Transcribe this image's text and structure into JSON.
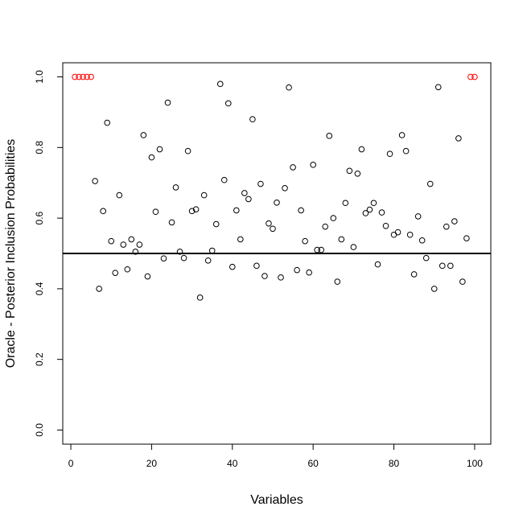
{
  "chart_data": {
    "type": "scatter",
    "title": "",
    "xlabel": "Variables",
    "ylabel": "Oracle - Posterior Inclusion Probabilities",
    "xlim": [
      -2,
      104
    ],
    "ylim": [
      -0.04,
      1.04
    ],
    "x_ticks": [
      0,
      20,
      40,
      60,
      80,
      100
    ],
    "y_ticks": [
      0.0,
      0.2,
      0.4,
      0.6,
      0.8,
      1.0
    ],
    "x_tick_labels": [
      "0",
      "20",
      "40",
      "60",
      "80",
      "100"
    ],
    "y_tick_labels": [
      "0.0",
      "0.2",
      "0.4",
      "0.6",
      "0.8",
      "1.0"
    ],
    "reference_line": {
      "y": 0.5,
      "color": "#000000"
    },
    "grid": false,
    "marker": "open-circle",
    "colors": {
      "highlighted": "#ff0000",
      "other": "#000000"
    },
    "highlighted_indices": [
      1,
      2,
      3,
      4,
      5,
      99,
      100
    ],
    "x": [
      1,
      2,
      3,
      4,
      5,
      6,
      7,
      8,
      9,
      10,
      11,
      12,
      13,
      14,
      15,
      16,
      17,
      18,
      19,
      20,
      21,
      22,
      23,
      24,
      25,
      26,
      27,
      28,
      29,
      30,
      31,
      32,
      33,
      34,
      35,
      36,
      37,
      38,
      39,
      40,
      41,
      42,
      43,
      44,
      45,
      46,
      47,
      48,
      49,
      50,
      51,
      52,
      53,
      54,
      55,
      56,
      57,
      58,
      59,
      60,
      61,
      62,
      63,
      64,
      65,
      66,
      67,
      68,
      69,
      70,
      71,
      72,
      73,
      74,
      75,
      76,
      77,
      78,
      79,
      80,
      81,
      82,
      83,
      84,
      85,
      86,
      87,
      88,
      89,
      90,
      91,
      92,
      93,
      94,
      95,
      96,
      97,
      98,
      99,
      100
    ],
    "y": [
      1.0,
      1.0,
      1.0,
      1.0,
      1.0,
      0.705,
      0.4,
      0.62,
      0.87,
      0.535,
      0.445,
      0.665,
      0.525,
      0.455,
      0.54,
      0.505,
      0.525,
      0.835,
      0.435,
      0.772,
      0.618,
      0.795,
      0.486,
      0.927,
      0.588,
      0.687,
      0.505,
      0.487,
      0.79,
      0.62,
      0.625,
      0.375,
      0.665,
      0.48,
      0.508,
      0.583,
      0.98,
      0.708,
      0.925,
      0.462,
      0.622,
      0.54,
      0.671,
      0.654,
      0.88,
      0.465,
      0.697,
      0.436,
      0.585,
      0.57,
      0.644,
      0.432,
      0.685,
      0.97,
      0.744,
      0.453,
      0.622,
      0.535,
      0.446,
      0.751,
      0.51,
      0.51,
      0.576,
      0.833,
      0.6,
      0.42,
      0.54,
      0.643,
      0.734,
      0.518,
      0.726,
      0.795,
      0.614,
      0.624,
      0.643,
      0.469,
      0.616,
      0.578,
      0.782,
      0.553,
      0.56,
      0.835,
      0.79,
      0.553,
      0.441,
      0.605,
      0.537,
      0.487,
      0.697,
      0.4,
      0.971,
      0.465,
      0.576,
      0.465,
      0.591,
      0.826,
      0.42,
      0.543,
      1.0,
      1.0
    ]
  }
}
